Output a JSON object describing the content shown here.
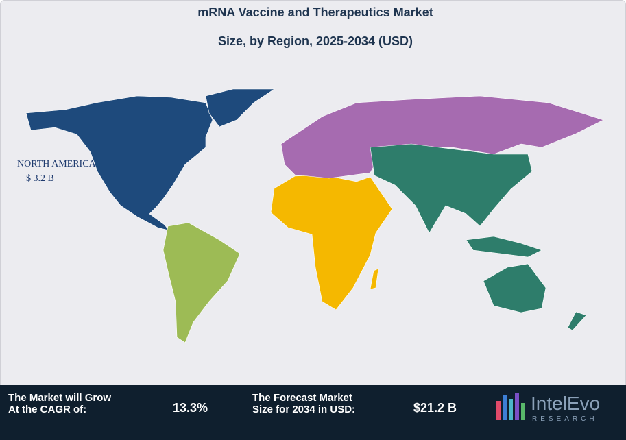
{
  "header": {
    "title": [
      "mRNA Vaccine and Therapeutics Market",
      "Size, by Region, 2025-2034 (USD)"
    ]
  },
  "map": {
    "label": "NORTH AMERICA",
    "value": "$ 3.2 B"
  },
  "footer": {
    "cagr": {
      "label": [
        "The Market will Grow",
        "At the CAGR of:"
      ],
      "value": "13.3%"
    },
    "forecast": {
      "label": [
        "The Forecast Market",
        "Size for 2034 in USD:"
      ],
      "value": "$21.2 B"
    }
  },
  "logo": {
    "name": "IntelEvo",
    "tagline": "RESEARCH"
  }
}
